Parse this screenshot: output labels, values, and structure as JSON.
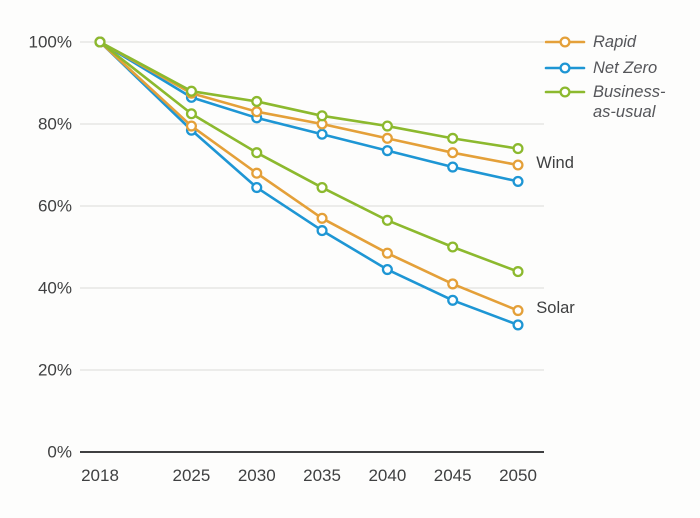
{
  "chart_data": {
    "type": "line",
    "title": "",
    "xlabel": "",
    "ylabel": "",
    "x": [
      2018,
      2025,
      2030,
      2035,
      2040,
      2045,
      2050
    ],
    "x_tick_labels": [
      "2018",
      "2025",
      "2030",
      "2035",
      "2040",
      "2045",
      "2050"
    ],
    "y_axis": {
      "ticks": [
        0,
        20,
        40,
        60,
        80,
        100
      ],
      "labels": [
        "0%",
        "20%",
        "40%",
        "60%",
        "80%",
        "100%"
      ],
      "range": [
        0,
        100
      ]
    },
    "grid": "horizontal-only",
    "marker": "open-circle",
    "series": [
      {
        "group": "Wind",
        "name": "Net Zero",
        "color": "#1E96D4",
        "values": [
          100,
          86.5,
          81.5,
          77.5,
          73.5,
          69.5,
          66
        ]
      },
      {
        "group": "Wind",
        "name": "Rapid",
        "color": "#E4A039",
        "values": [
          100,
          87.5,
          83,
          80,
          76.5,
          73,
          70
        ]
      },
      {
        "group": "Wind",
        "name": "Business-as-usual",
        "color": "#8CB92E",
        "values": [
          100,
          88,
          85.5,
          82,
          79.5,
          76.5,
          74
        ]
      },
      {
        "group": "Solar",
        "name": "Net Zero",
        "color": "#1E96D4",
        "values": [
          100,
          78.5,
          64.5,
          54,
          44.5,
          37,
          31
        ]
      },
      {
        "group": "Solar",
        "name": "Rapid",
        "color": "#E4A039",
        "values": [
          100,
          79.5,
          68,
          57,
          48.5,
          41,
          34.5
        ]
      },
      {
        "group": "Solar",
        "name": "Business-as-usual",
        "color": "#8CB92E",
        "values": [
          100,
          82.5,
          73,
          64.5,
          56.5,
          50,
          44
        ]
      }
    ],
    "annotations": [
      {
        "text": "Wind",
        "x": 2051.4,
        "y": 70.5
      },
      {
        "text": "Solar",
        "x": 2051.4,
        "y": 35.1
      }
    ],
    "legend": {
      "position": "top-right",
      "entries": [
        {
          "label": "Rapid",
          "lines": [
            "Rapid"
          ],
          "color": "#E4A039"
        },
        {
          "label": "Net Zero",
          "lines": [
            "Net Zero"
          ],
          "color": "#1E96D4"
        },
        {
          "label": "Business-as-usual",
          "lines": [
            "Business-",
            "as-usual"
          ],
          "color": "#8CB92E"
        }
      ]
    },
    "colors": {
      "rapid": "#E4A039",
      "net_zero": "#1E96D4",
      "business_as_usual": "#8CB92E",
      "gridline": "#DADAD8",
      "axis_line": "#3F4041",
      "tick_text": "#3F4041",
      "legend_text": "#55565A",
      "background": "#FDFDFC"
    }
  }
}
